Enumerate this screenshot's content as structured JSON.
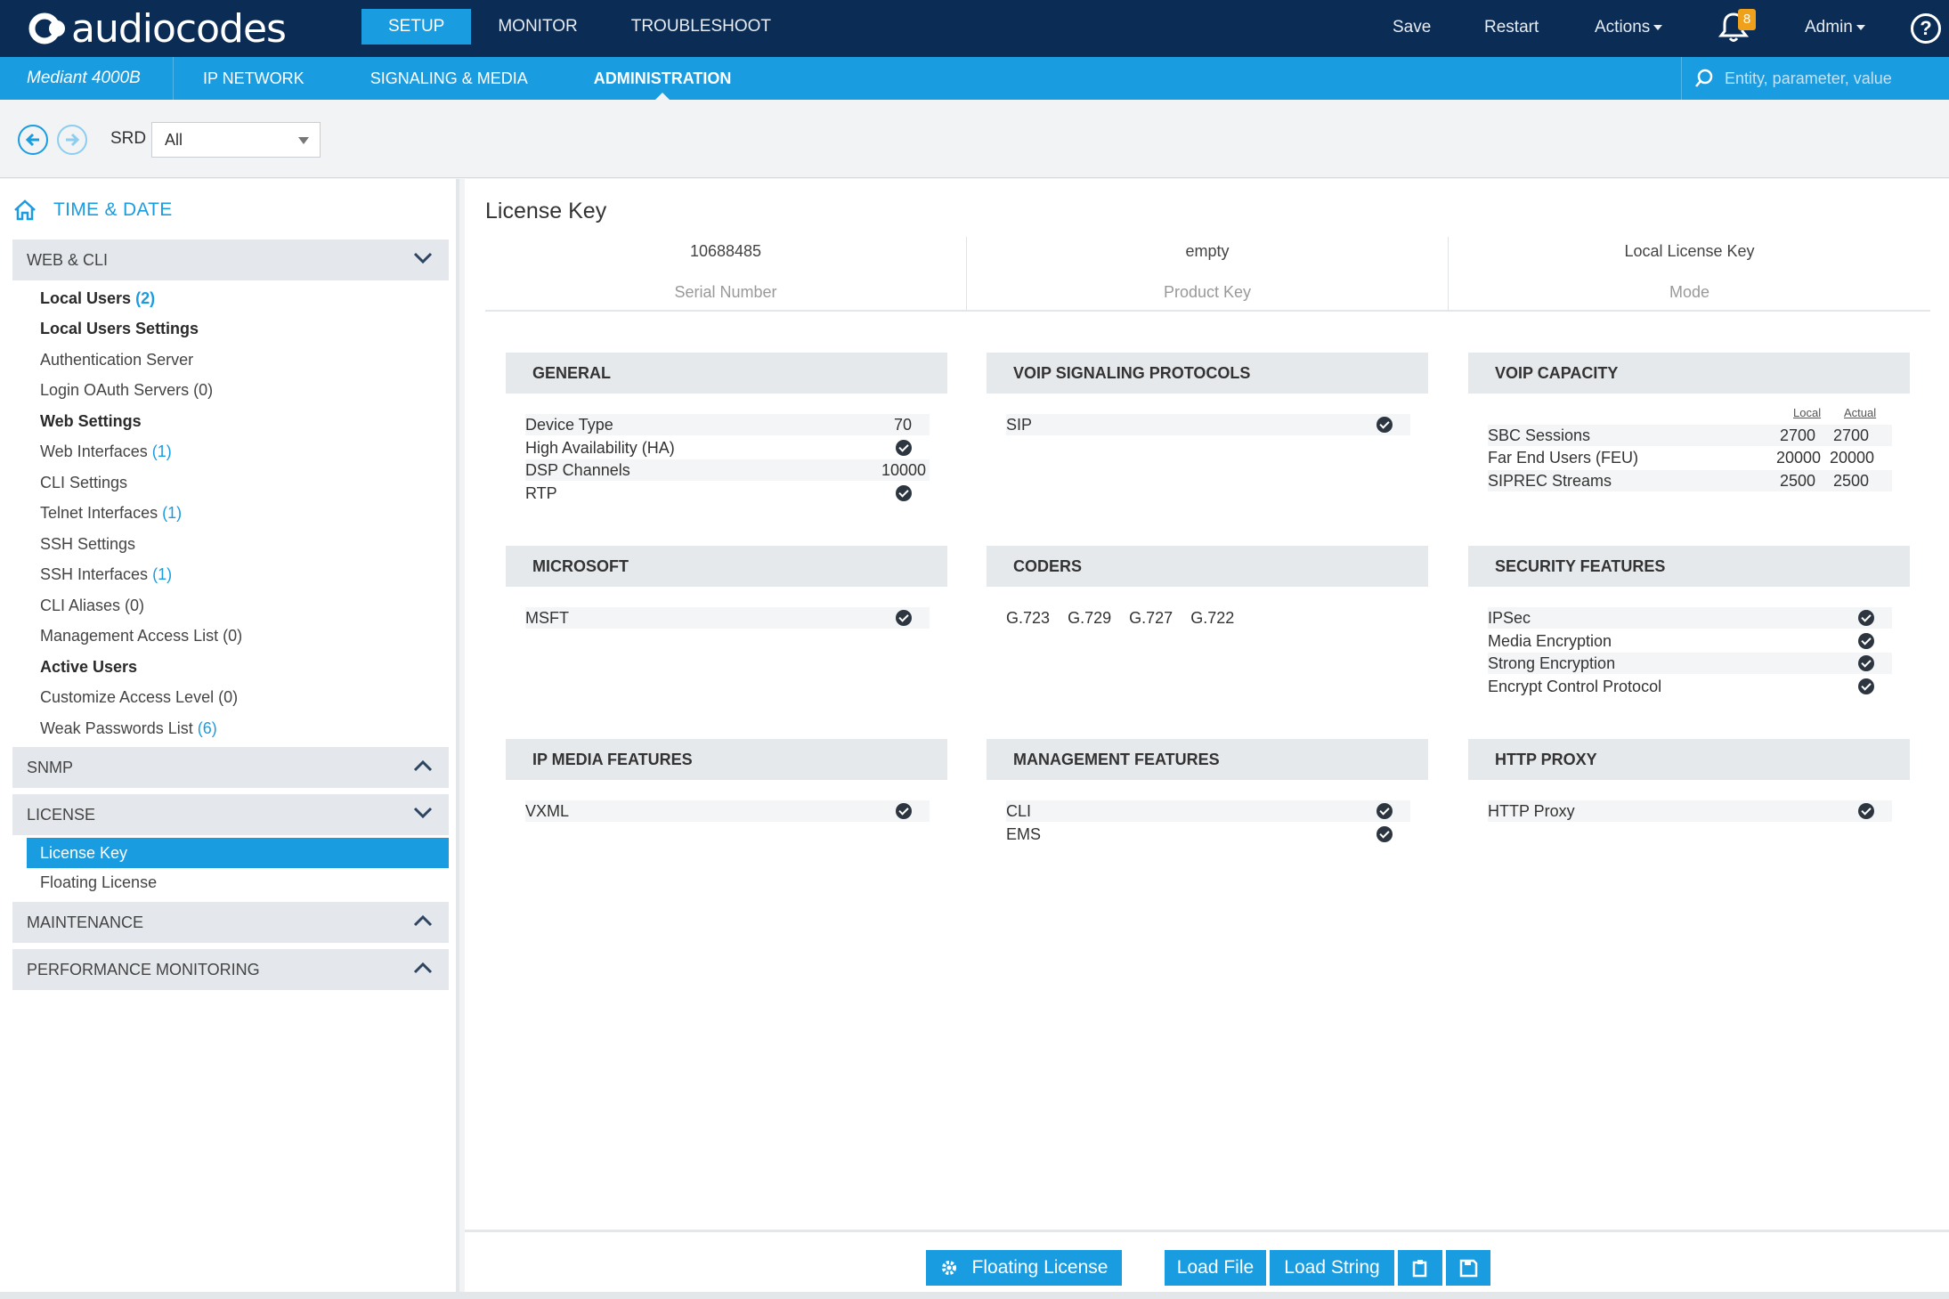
{
  "header": {
    "logo": "audiocodes",
    "tabs": [
      {
        "label": "SETUP"
      },
      {
        "label": "MONITOR"
      },
      {
        "label": "TROUBLESHOOT"
      }
    ],
    "save_label": "Save",
    "restart_label": "Restart",
    "actions_label": "Actions",
    "notifications_count": "8",
    "user_label": "Admin",
    "help_label": "?"
  },
  "subheader": {
    "device": "Mediant 4000B",
    "tabs": [
      {
        "label": "IP NETWORK"
      },
      {
        "label": "SIGNALING & MEDIA"
      },
      {
        "label": "ADMINISTRATION"
      }
    ],
    "search_placeholder": "Entity, parameter, value"
  },
  "srd": {
    "label": "SRD",
    "value": "All"
  },
  "sidebar": {
    "home_label": "TIME & DATE",
    "groups": {
      "web_cli": "WEB & CLI",
      "snmp": "SNMP",
      "license": "LICENSE",
      "maintenance": "MAINTENANCE",
      "performance": "PERFORMANCE MONITORING"
    },
    "web_items": [
      {
        "label": "Local Users",
        "count": "(2)"
      },
      {
        "label": "Local Users Settings",
        "count": ""
      },
      {
        "label": "Authentication Server",
        "count": ""
      },
      {
        "label": "Login OAuth Servers (0)",
        "count": ""
      },
      {
        "label": "Web Settings",
        "count": ""
      },
      {
        "label": "Web Interfaces",
        "count": "(1)"
      },
      {
        "label": "CLI Settings",
        "count": ""
      },
      {
        "label": "Telnet Interfaces",
        "count": "(1)"
      },
      {
        "label": "SSH Settings",
        "count": ""
      },
      {
        "label": "SSH Interfaces",
        "count": "(1)"
      },
      {
        "label": "CLI Aliases (0)",
        "count": ""
      },
      {
        "label": "Management Access List (0)",
        "count": ""
      },
      {
        "label": "Active Users",
        "count": ""
      },
      {
        "label": "Customize Access Level (0)",
        "count": ""
      },
      {
        "label": "Weak Passwords List",
        "count": "(6)"
      }
    ],
    "license_items": [
      {
        "label": "License Key"
      },
      {
        "label": "Floating License"
      }
    ]
  },
  "main": {
    "title": "License Key",
    "summary": [
      {
        "value": "10688485",
        "label": "Serial Number"
      },
      {
        "value": "empty",
        "label": "Product Key"
      },
      {
        "value": "Local License Key",
        "label": "Mode"
      }
    ],
    "panels": {
      "general": {
        "title": "GENERAL",
        "rows": [
          {
            "label": "Device Type",
            "value": "70"
          },
          {
            "label": "High Availability (HA)",
            "value": ""
          },
          {
            "label": "DSP Channels",
            "value": "10000"
          },
          {
            "label": "RTP",
            "value": ""
          }
        ]
      },
      "voip_signaling": {
        "title": "VOIP SIGNALING PROTOCOLS",
        "rows": [
          {
            "label": "SIP"
          }
        ]
      },
      "voip_capacity": {
        "title": "VOIP CAPACITY",
        "col_local": "Local",
        "col_actual": "Actual",
        "rows": [
          {
            "label": "SBC Sessions",
            "local": "2700",
            "actual": "2700"
          },
          {
            "label": "Far End Users (FEU)",
            "local": "20000",
            "actual": "20000"
          },
          {
            "label": "SIPREC Streams",
            "local": "2500",
            "actual": "2500"
          }
        ]
      },
      "microsoft": {
        "title": "MICROSOFT",
        "rows": [
          {
            "label": "MSFT"
          }
        ]
      },
      "coders": {
        "title": "CODERS",
        "items": [
          "G.723",
          "G.729",
          "G.727",
          "G.722"
        ]
      },
      "security": {
        "title": "SECURITY FEATURES",
        "rows": [
          {
            "label": "IPSec"
          },
          {
            "label": "Media Encryption"
          },
          {
            "label": "Strong Encryption"
          },
          {
            "label": "Encrypt Control Protocol"
          }
        ]
      },
      "ip_media": {
        "title": "IP MEDIA FEATURES",
        "rows": [
          {
            "label": "VXML"
          }
        ]
      },
      "management": {
        "title": "MANAGEMENT FEATURES",
        "rows": [
          {
            "label": "CLI"
          },
          {
            "label": "EMS"
          }
        ]
      },
      "http_proxy": {
        "title": "HTTP PROXY",
        "rows": [
          {
            "label": "HTTP Proxy"
          }
        ]
      }
    }
  },
  "footer": {
    "floating_license": "Floating License",
    "load_file": "Load File",
    "load_string": "Load String"
  },
  "colors": {
    "topbar": "#0b2c55",
    "accent": "#1a9ce0",
    "panel_header": "#e6e9ec",
    "badge": "#f0a11b"
  }
}
